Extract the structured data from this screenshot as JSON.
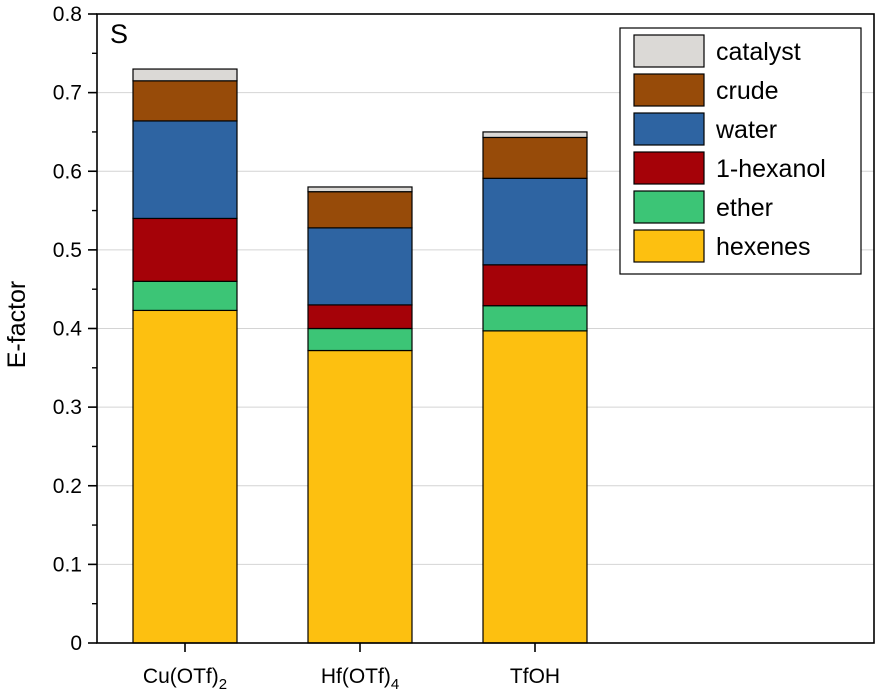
{
  "chart_data": {
    "type": "bar",
    "stacked": true,
    "panel_label": "S",
    "ylabel": "E-factor",
    "xlabel": "",
    "ylim": [
      0,
      0.8
    ],
    "yticks": [
      "0",
      "0.1",
      "0.2",
      "0.3",
      "0.4",
      "0.5",
      "0.6",
      "0.7",
      "0.8"
    ],
    "categories": [
      {
        "label": "Cu(OTf)",
        "sub": "2"
      },
      {
        "label": "Hf(OTf)",
        "sub": "4"
      },
      {
        "label": "TfOH",
        "sub": ""
      }
    ],
    "series": [
      {
        "name": "hexenes",
        "color": "#FDC010",
        "values": [
          0.423,
          0.372,
          0.397
        ]
      },
      {
        "name": "ether",
        "color": "#3CC576",
        "values": [
          0.037,
          0.028,
          0.032
        ]
      },
      {
        "name": "1-hexanol",
        "color": "#A50208",
        "values": [
          0.08,
          0.03,
          0.052
        ]
      },
      {
        "name": "water",
        "color": "#2E64A2",
        "values": [
          0.124,
          0.098,
          0.11
        ]
      },
      {
        "name": "crude",
        "color": "#974B09",
        "values": [
          0.051,
          0.046,
          0.052
        ]
      },
      {
        "name": "catalyst",
        "color": "#DBD9D6",
        "values": [
          0.015,
          0.006,
          0.007
        ]
      }
    ],
    "legend": {
      "position": "top-right",
      "order": [
        "catalyst",
        "crude",
        "water",
        "1-hexanol",
        "ether",
        "hexenes"
      ]
    },
    "grid": {
      "y": true,
      "x": false
    }
  }
}
